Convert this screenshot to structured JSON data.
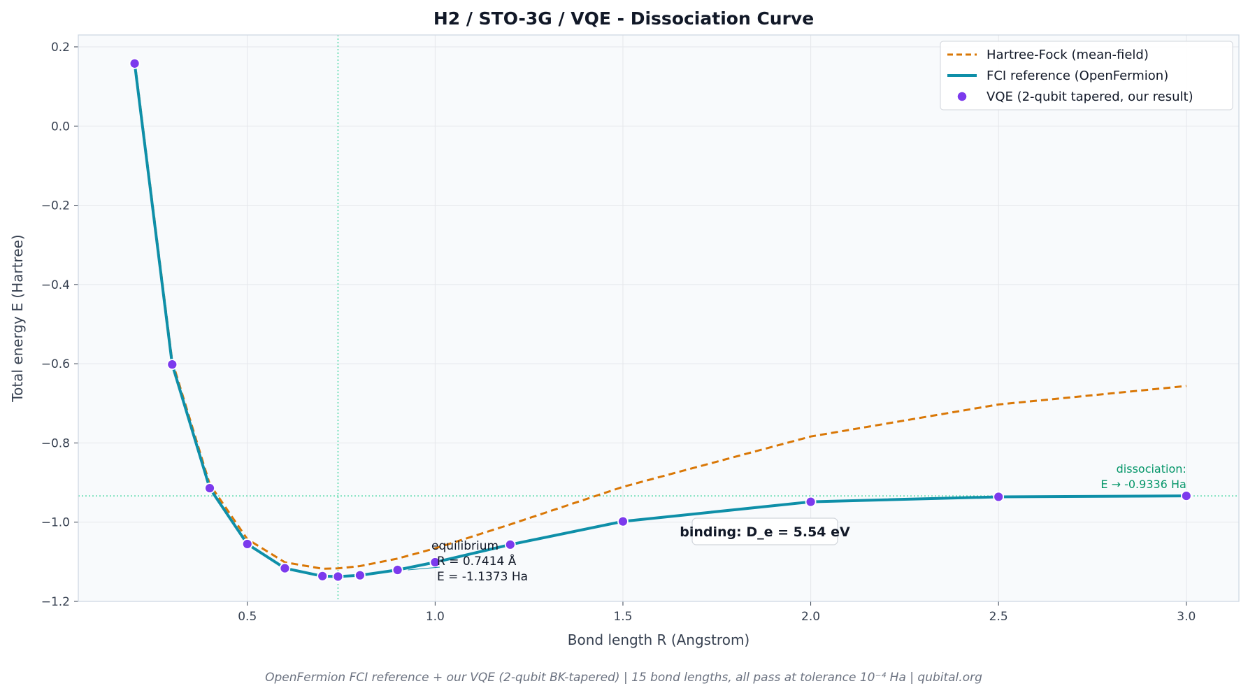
{
  "chart_data": {
    "type": "line",
    "title": "H2 / STO-3G / VQE - Dissociation Curve",
    "xlabel": "Bond length R (Angstrom)",
    "ylabel": "Total energy E (Hartree)",
    "xlim": [
      0.05,
      3.14
    ],
    "ylim": [
      -1.2,
      0.23
    ],
    "x_ticks": [
      0.5,
      1.0,
      1.5,
      2.0,
      2.5,
      3.0
    ],
    "x_tick_labels": [
      "0.5",
      "1.0",
      "1.5",
      "2.0",
      "2.5",
      "3.0"
    ],
    "y_ticks": [
      0.2,
      0.0,
      -0.2,
      -0.4,
      -0.6,
      -0.8,
      -1.0,
      -1.2
    ],
    "y_tick_labels": [
      "0.2",
      "0.0",
      "−0.2",
      "−0.4",
      "−0.6",
      "−0.8",
      "−1.0",
      "−1.2"
    ],
    "grid": true,
    "legend_position": "top-right",
    "series": [
      {
        "name": "Hartree-Fock (mean-field)",
        "style": "dashed",
        "color": "#d97706",
        "x": [
          0.2,
          0.3,
          0.4,
          0.5,
          0.6,
          0.7,
          0.7414,
          0.8,
          0.9,
          1.0,
          1.2,
          1.5,
          2.0,
          2.5,
          3.0
        ],
        "y": [
          0.1643,
          -0.5933,
          -0.9043,
          -1.0429,
          -1.1014,
          -1.1175,
          -1.1167,
          -1.1108,
          -1.0919,
          -1.0661,
          -1.0057,
          -0.9108,
          -0.7837,
          -0.7029,
          -0.6563
        ]
      },
      {
        "name": "FCI reference (OpenFermion)",
        "style": "solid",
        "color": "#0e8fa8",
        "x": [
          0.2,
          0.3,
          0.4,
          0.5,
          0.6,
          0.7,
          0.7414,
          0.8,
          0.9,
          1.0,
          1.2,
          1.5,
          2.0,
          2.5,
          3.0
        ],
        "y": [
          0.1579,
          -0.6018,
          -0.9141,
          -1.0551,
          -1.1163,
          -1.1362,
          -1.1373,
          -1.1341,
          -1.1206,
          -1.1012,
          -1.0567,
          -0.9981,
          -0.9486,
          -0.936,
          -0.9336
        ]
      },
      {
        "name": "VQE (2-qubit tapered, our result)",
        "style": "markers",
        "color": "#7c3aed",
        "x": [
          0.2,
          0.3,
          0.4,
          0.5,
          0.6,
          0.7,
          0.7414,
          0.8,
          0.9,
          1.0,
          1.2,
          1.5,
          2.0,
          2.5,
          3.0
        ],
        "y": [
          0.1579,
          -0.6018,
          -0.9141,
          -1.0551,
          -1.1163,
          -1.1362,
          -1.1373,
          -1.1341,
          -1.1206,
          -1.1012,
          -1.0567,
          -0.9981,
          -0.9486,
          -0.936,
          -0.9336
        ]
      }
    ],
    "reference_lines": {
      "equilibrium_x": 0.7414,
      "dissociation_y": -0.9336
    },
    "annotations": {
      "equilibrium": [
        "equilibrium",
        "R = 0.7414 Å",
        "E = -1.1373 Ha"
      ],
      "dissociation": [
        "dissociation:",
        "E → -0.9336 Ha"
      ],
      "binding": "binding: D_e = 5.54 eV"
    },
    "footer": "OpenFermion FCI reference + our VQE (2-qubit BK-tapered)  |  15 bond lengths, all pass at tolerance 10⁻⁴ Ha  |  qubital.org"
  }
}
